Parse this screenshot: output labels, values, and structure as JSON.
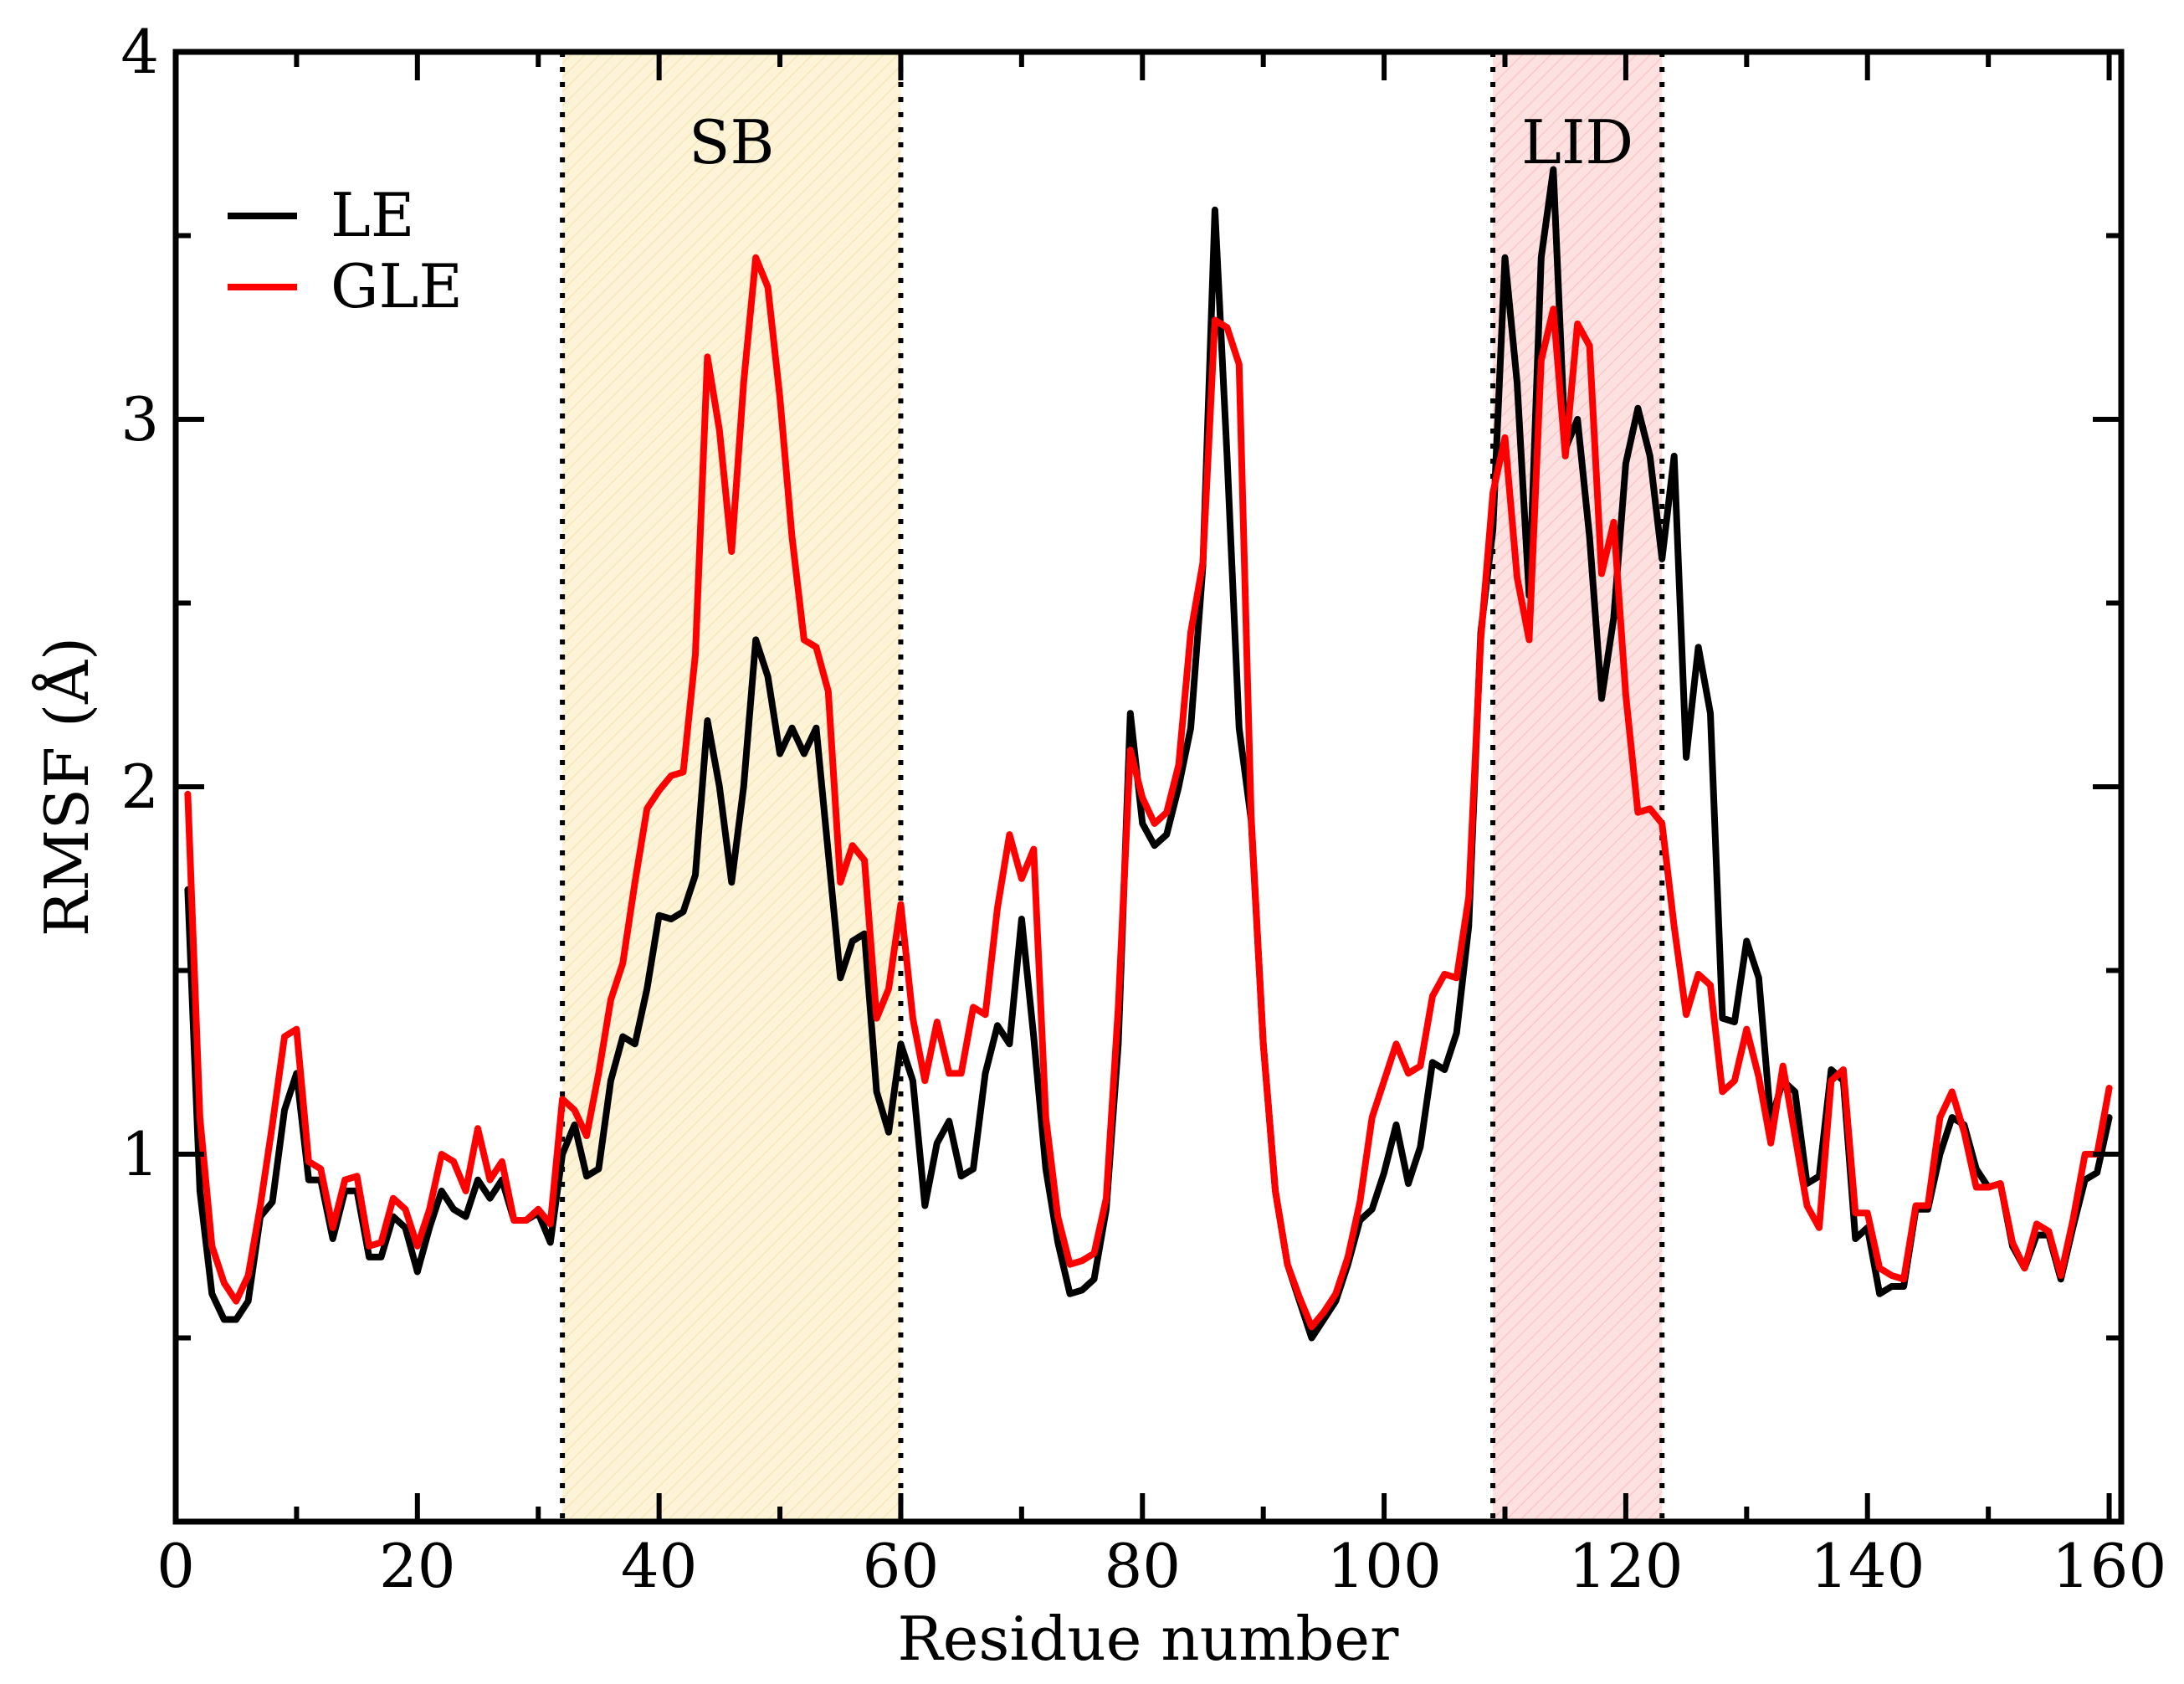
{
  "chart_data": {
    "type": "line",
    "title": "",
    "xlabel": "Residue number",
    "ylabel": "RMSF (Å)",
    "xlim": [
      0,
      161
    ],
    "ylim": [
      0,
      4
    ],
    "xticks": [
      0,
      20,
      40,
      60,
      80,
      100,
      120,
      140,
      160
    ],
    "yticks": [
      1,
      2,
      3,
      4
    ],
    "yminor": [
      0.5,
      1.5,
      2.5,
      3.5
    ],
    "xminor": [
      10,
      30,
      50,
      70,
      90,
      110,
      130,
      150
    ],
    "grid": false,
    "legend": {
      "placement": "top-left",
      "entries": [
        "LE",
        "GLE"
      ]
    },
    "regions": [
      {
        "label": "SB",
        "start": 32,
        "end": 60,
        "color": "#fdf3d6"
      },
      {
        "label": "LID",
        "start": 109,
        "end": 123,
        "color": "#fde0e0"
      }
    ],
    "series": [
      {
        "name": "LE",
        "color": "#000000",
        "x": [
          1,
          2,
          3,
          4,
          5,
          6,
          7,
          8,
          9,
          10,
          11,
          12,
          13,
          14,
          15,
          16,
          17,
          18,
          19,
          20,
          21,
          22,
          23,
          24,
          25,
          26,
          27,
          28,
          29,
          30,
          31,
          32,
          33,
          34,
          35,
          36,
          37,
          38,
          39,
          40,
          41,
          42,
          43,
          44,
          45,
          46,
          47,
          48,
          49,
          50,
          51,
          52,
          53,
          54,
          55,
          56,
          57,
          58,
          59,
          60,
          61,
          62,
          63,
          64,
          65,
          66,
          67,
          68,
          69,
          70,
          71,
          72,
          73,
          74,
          75,
          76,
          77,
          78,
          79,
          80,
          81,
          82,
          83,
          84,
          85,
          86,
          87,
          88,
          89,
          90,
          91,
          92,
          93,
          94,
          95,
          96,
          97,
          98,
          99,
          100,
          101,
          102,
          103,
          104,
          105,
          106,
          107,
          108,
          109,
          110,
          111,
          112,
          113,
          114,
          115,
          116,
          117,
          118,
          119,
          120,
          121,
          122,
          123,
          124,
          125,
          126,
          127,
          128,
          129,
          130,
          131,
          132,
          133,
          134,
          135,
          136,
          137,
          138,
          139,
          140,
          141,
          142,
          143,
          144,
          145,
          146,
          147,
          148,
          149,
          150,
          151,
          152,
          153,
          154,
          155,
          156,
          157,
          158,
          159,
          160
        ],
        "values": [
          1.72,
          0.9,
          0.62,
          0.55,
          0.55,
          0.6,
          0.83,
          0.87,
          1.12,
          1.22,
          0.93,
          0.93,
          0.77,
          0.9,
          0.9,
          0.72,
          0.72,
          0.83,
          0.8,
          0.68,
          0.8,
          0.9,
          0.85,
          0.83,
          0.93,
          0.88,
          0.93,
          0.82,
          0.82,
          0.84,
          0.76,
          1.0,
          1.08,
          0.94,
          0.96,
          1.2,
          1.32,
          1.3,
          1.45,
          1.65,
          1.64,
          1.66,
          1.76,
          2.18,
          2.0,
          1.74,
          2.0,
          2.4,
          2.3,
          2.09,
          2.16,
          2.09,
          2.16,
          1.82,
          1.48,
          1.58,
          1.6,
          1.17,
          1.06,
          1.3,
          1.2,
          0.86,
          1.03,
          1.09,
          0.94,
          0.96,
          1.22,
          1.35,
          1.3,
          1.64,
          1.32,
          0.96,
          0.76,
          0.62,
          0.63,
          0.66,
          0.85,
          1.3,
          2.2,
          1.9,
          1.84,
          1.87,
          2.0,
          2.16,
          2.6,
          3.57,
          2.9,
          2.16,
          1.91,
          1.3,
          0.9,
          0.7,
          0.6,
          0.5,
          0.55,
          0.6,
          0.7,
          0.82,
          0.85,
          0.95,
          1.08,
          0.92,
          1.02,
          1.25,
          1.23,
          1.33,
          1.62,
          2.42,
          2.7,
          3.44,
          3.1,
          2.52,
          3.44,
          3.68,
          2.92,
          3.0,
          2.68,
          2.24,
          2.46,
          2.88,
          3.03,
          2.9,
          2.62,
          2.9,
          2.08,
          2.38,
          2.2,
          1.37,
          1.36,
          1.58,
          1.48,
          1.09,
          1.2,
          1.17,
          0.92,
          0.94,
          1.23,
          1.2,
          0.77,
          0.8,
          0.62,
          0.64,
          0.64,
          0.85,
          0.85,
          1.0,
          1.1,
          1.08,
          0.96,
          0.91,
          0.92,
          0.75,
          0.69,
          0.78,
          0.78,
          0.66,
          0.8,
          0.93,
          0.95,
          1.1
        ]
      },
      {
        "name": "GLE",
        "color": "#ff0000",
        "x": [
          1,
          2,
          3,
          4,
          5,
          6,
          7,
          8,
          9,
          10,
          11,
          12,
          13,
          14,
          15,
          16,
          17,
          18,
          19,
          20,
          21,
          22,
          23,
          24,
          25,
          26,
          27,
          28,
          29,
          30,
          31,
          32,
          33,
          34,
          35,
          36,
          37,
          38,
          39,
          40,
          41,
          42,
          43,
          44,
          45,
          46,
          47,
          48,
          49,
          50,
          51,
          52,
          53,
          54,
          55,
          56,
          57,
          58,
          59,
          60,
          61,
          62,
          63,
          64,
          65,
          66,
          67,
          68,
          69,
          70,
          71,
          72,
          73,
          74,
          75,
          76,
          77,
          78,
          79,
          80,
          81,
          82,
          83,
          84,
          85,
          86,
          87,
          88,
          89,
          90,
          91,
          92,
          93,
          94,
          95,
          96,
          97,
          98,
          99,
          100,
          101,
          102,
          103,
          104,
          105,
          106,
          107,
          108,
          109,
          110,
          111,
          112,
          113,
          114,
          115,
          116,
          117,
          118,
          119,
          120,
          121,
          122,
          123,
          124,
          125,
          126,
          127,
          128,
          129,
          130,
          131,
          132,
          133,
          134,
          135,
          136,
          137,
          138,
          139,
          140,
          141,
          142,
          143,
          144,
          145,
          146,
          147,
          148,
          149,
          150,
          151,
          152,
          153,
          154,
          155,
          156,
          157,
          158,
          159,
          160
        ],
        "values": [
          1.98,
          1.1,
          0.75,
          0.65,
          0.6,
          0.67,
          0.86,
          1.08,
          1.32,
          1.34,
          0.98,
          0.96,
          0.8,
          0.93,
          0.94,
          0.75,
          0.76,
          0.88,
          0.85,
          0.75,
          0.85,
          1.0,
          0.98,
          0.9,
          1.07,
          0.93,
          0.98,
          0.82,
          0.82,
          0.85,
          0.81,
          1.15,
          1.12,
          1.05,
          1.22,
          1.42,
          1.52,
          1.74,
          1.94,
          1.99,
          2.03,
          2.04,
          2.36,
          3.17,
          2.97,
          2.64,
          3.1,
          3.44,
          3.36,
          3.06,
          2.68,
          2.4,
          2.38,
          2.26,
          1.74,
          1.84,
          1.8,
          1.37,
          1.45,
          1.68,
          1.37,
          1.2,
          1.36,
          1.22,
          1.22,
          1.4,
          1.38,
          1.67,
          1.87,
          1.75,
          1.83,
          1.1,
          0.83,
          0.7,
          0.71,
          0.73,
          0.88,
          1.4,
          2.1,
          1.97,
          1.9,
          1.93,
          2.06,
          2.42,
          2.61,
          3.27,
          3.25,
          3.15,
          1.92,
          1.3,
          0.9,
          0.7,
          0.61,
          0.53,
          0.57,
          0.62,
          0.72,
          0.87,
          1.1,
          1.2,
          1.3,
          1.22,
          1.24,
          1.43,
          1.49,
          1.48,
          1.7,
          2.4,
          2.8,
          2.95,
          2.57,
          2.4,
          3.16,
          3.3,
          2.9,
          3.26,
          3.2,
          2.58,
          2.72,
          2.25,
          1.93,
          1.94,
          1.9,
          1.62,
          1.38,
          1.49,
          1.46,
          1.17,
          1.2,
          1.34,
          1.21,
          1.03,
          1.24,
          1.05,
          0.86,
          0.8,
          1.2,
          1.23,
          0.84,
          0.84,
          0.69,
          0.67,
          0.66,
          0.86,
          0.86,
          1.1,
          1.17,
          1.06,
          0.91,
          0.91,
          0.92,
          0.76,
          0.69,
          0.81,
          0.79,
          0.67,
          0.82,
          1.0,
          1.0,
          1.18
        ]
      }
    ]
  }
}
